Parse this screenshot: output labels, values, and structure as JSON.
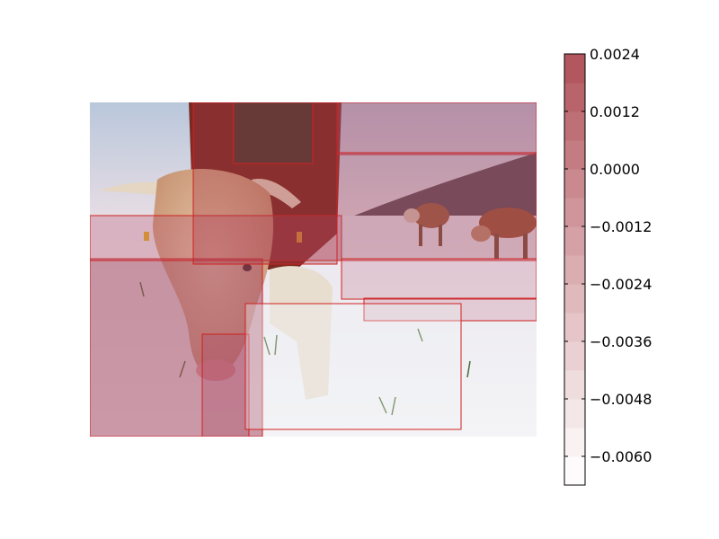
{
  "chart_data": {
    "type": "heatmap",
    "description_source": "image with semi-transparent red rectangular saliency overlay and a discrete colorbar",
    "colorbar": {
      "cmap": "reds (white to dark red)",
      "vmin": -0.0066,
      "vmax": 0.0024,
      "levels": 15,
      "ticks": [
        0.0024,
        0.0012,
        0.0,
        -0.0012,
        -0.0024,
        -0.0036,
        -0.0048,
        -0.006
      ],
      "tick_labels": [
        "0.0024",
        "0.0012",
        "0.0000",
        "−0.0012",
        "−0.0024",
        "−0.0036",
        "−0.0048",
        "−0.0060"
      ]
    },
    "colors": {
      "low": "#ffffff",
      "high": "#b05058",
      "edge": "#d02020"
    },
    "scene": "cows grazing in snowy field, close-up of cow head on left"
  }
}
